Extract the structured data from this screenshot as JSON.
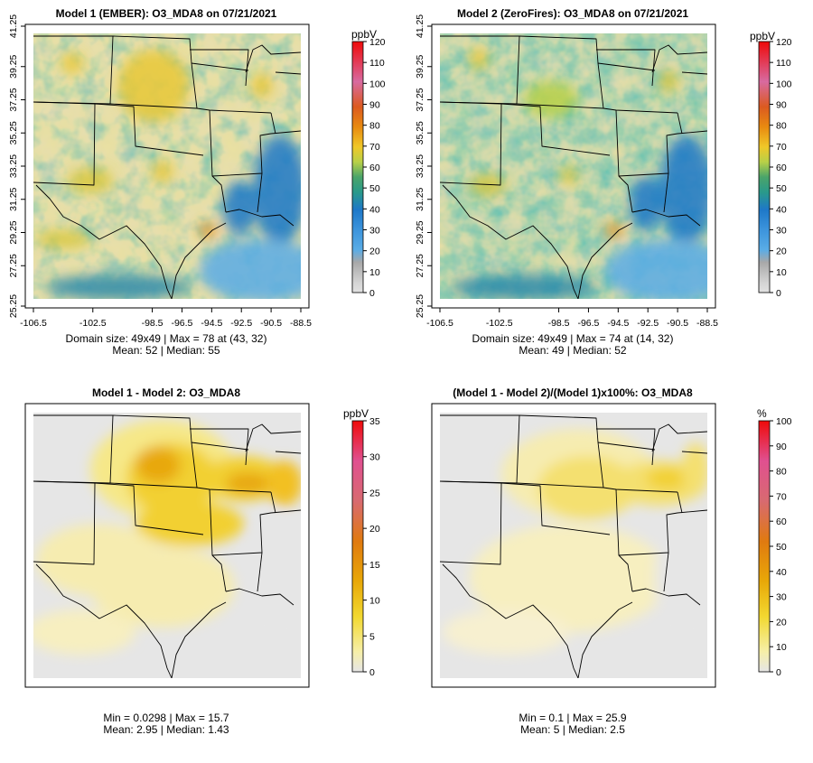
{
  "panels": [
    {
      "title": "Model 1 (EMBER): O3_MDA8 on 07/21/2021",
      "show_axes": true,
      "xticks": [
        "-106.5",
        "-102.5",
        "-98.5",
        "-96.5",
        "-94.5",
        "-92.5",
        "-90.5",
        "-88.5"
      ],
      "yticks": [
        "25.25",
        "27.25",
        "29.25",
        "31.25",
        "33.25",
        "35.25",
        "37.25",
        "39.25",
        "41.25"
      ],
      "stats_line1": "Domain size: 49x49 | Max = 78 at (43, 32)",
      "stats_line2": "Mean: 52 |  Median: 55",
      "colorbar": {
        "unit": "ppbV",
        "ticks": [
          "0",
          "10",
          "20",
          "30",
          "40",
          "50",
          "60",
          "70",
          "80",
          "90",
          "100",
          "110",
          "120"
        ],
        "colors": [
          "#e2e2e2",
          "#5aace6",
          "#1e78c8",
          "#2a9a8a",
          "#4aa46a",
          "#b8d048",
          "#f0c828",
          "#e88a10",
          "#ef0a0a"
        ]
      }
    },
    {
      "title": "Model 2 (ZeroFires): O3_MDA8 on 07/21/2021",
      "show_axes": true,
      "xticks": [
        "-106.5",
        "-102.5",
        "-98.5",
        "-96.5",
        "-94.5",
        "-92.5",
        "-90.5",
        "-88.5"
      ],
      "yticks": [
        "25.25",
        "27.25",
        "29.25",
        "31.25",
        "33.25",
        "35.25",
        "37.25",
        "39.25",
        "41.25"
      ],
      "stats_line1": "Domain size: 49x49 | Max = 74 at (14, 32)",
      "stats_line2": "Mean: 49 |  Median: 52",
      "colorbar": {
        "unit": "ppbV",
        "ticks": [
          "0",
          "10",
          "20",
          "30",
          "40",
          "50",
          "60",
          "70",
          "80",
          "90",
          "100",
          "110",
          "120"
        ],
        "colors": [
          "#e2e2e2",
          "#5aace6",
          "#1e78c8",
          "#2a9a8a",
          "#4aa46a",
          "#b8d048",
          "#f0c828",
          "#e88a10",
          "#ef0a0a"
        ]
      }
    },
    {
      "title": "Model 1 - Model 2: O3_MDA8",
      "show_axes": false,
      "stats_line1": "Min = 0.0298 | Max = 15.7",
      "stats_line2": "Mean: 2.95 |  Median: 1.43",
      "colorbar": {
        "unit": "ppbV",
        "ticks": [
          "0",
          "5",
          "10",
          "15",
          "20",
          "25",
          "30",
          "35"
        ],
        "colors": [
          "#e6e6e6",
          "#f6efa8",
          "#f2d830",
          "#e8a808",
          "#e07a10",
          "#d86a70",
          "#e05090",
          "#ef0a0a"
        ]
      }
    },
    {
      "title": "(Model 1 - Model 2)/(Model 1)x100%: O3_MDA8",
      "show_axes": false,
      "stats_line1": "Min = 0.1 | Max = 25.9",
      "stats_line2": "Mean: 5 |  Median: 2.5",
      "colorbar": {
        "unit": "%",
        "ticks": [
          "0",
          "10",
          "20",
          "30",
          "40",
          "50",
          "60",
          "70",
          "80",
          "90",
          "100"
        ],
        "colors": [
          "#e6e6e6",
          "#f6efa8",
          "#f2d830",
          "#e8a808",
          "#e07a10",
          "#d86a70",
          "#e05090",
          "#ef0a0a"
        ]
      }
    }
  ],
  "chart_data": [
    {
      "type": "heatmap",
      "title": "Model 1 (EMBER): O3_MDA8 on 07/21/2021",
      "variable": "O3_MDA8",
      "units": "ppbV",
      "grid": [
        49,
        49
      ],
      "x_range": [
        -106.5,
        -88.5
      ],
      "y_range": [
        25.25,
        41.25
      ],
      "value_range": [
        0,
        120
      ],
      "max": 78,
      "max_at": [
        43,
        32
      ],
      "mean": 52,
      "median": 55
    },
    {
      "type": "heatmap",
      "title": "Model 2 (ZeroFires): O3_MDA8 on 07/21/2021",
      "variable": "O3_MDA8",
      "units": "ppbV",
      "grid": [
        49,
        49
      ],
      "x_range": [
        -106.5,
        -88.5
      ],
      "y_range": [
        25.25,
        41.25
      ],
      "value_range": [
        0,
        120
      ],
      "max": 74,
      "max_at": [
        14,
        32
      ],
      "mean": 49,
      "median": 52
    },
    {
      "type": "heatmap",
      "title": "Model 1 - Model 2: O3_MDA8",
      "units": "ppbV",
      "value_range": [
        0,
        35
      ],
      "min": 0.0298,
      "max": 15.7,
      "mean": 2.95,
      "median": 1.43
    },
    {
      "type": "heatmap",
      "title": "(Model 1 - Model 2)/(Model 1)x100%: O3_MDA8",
      "units": "%",
      "value_range": [
        0,
        100
      ],
      "min": 0.1,
      "max": 25.9,
      "mean": 5,
      "median": 2.5
    }
  ]
}
